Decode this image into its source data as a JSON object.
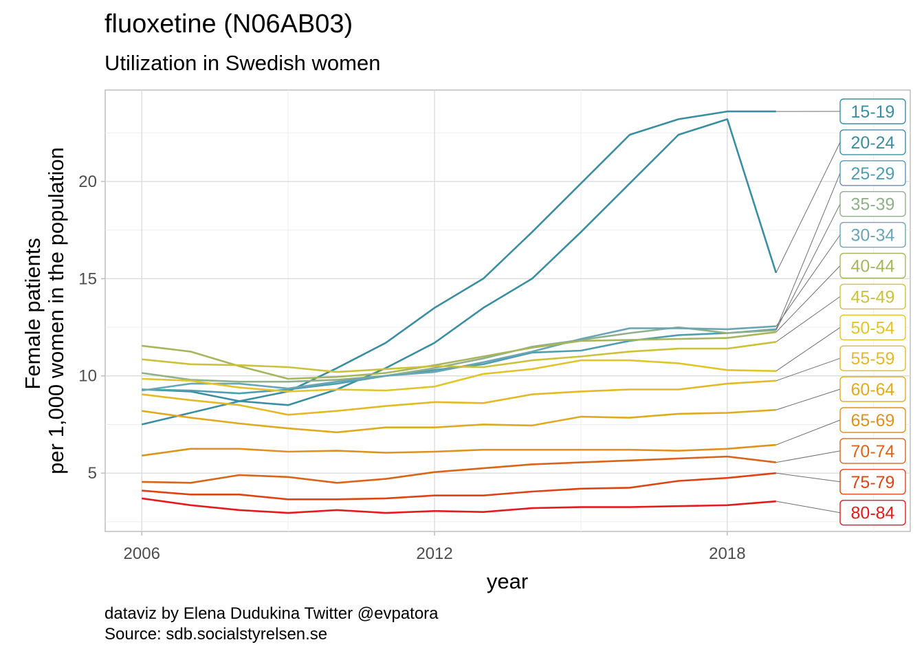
{
  "title": "fluoxetine (N06AB03)",
  "subtitle": "Utilization in Swedish women",
  "caption": [
    "dataviz by Elena Dudukina Twitter @evpatora",
    "Source: sdb.socialstyrelsen.se"
  ],
  "chart_data": {
    "type": "line",
    "title": "fluoxetine (N06AB03)",
    "subtitle": "Utilization in Swedish women",
    "xlabel": "year",
    "ylabel": "Female patients\nper 1,000 women in the population",
    "xlim": [
      2005.25,
      2021.75
    ],
    "ylim": [
      2.0,
      24.7
    ],
    "x_ticks": [
      2006,
      2012,
      2018
    ],
    "y_ticks": [
      5,
      10,
      15,
      20
    ],
    "grid": true,
    "legend": "direct labels at right end of each line",
    "x": [
      2006,
      2007,
      2008,
      2009,
      2010,
      2011,
      2012,
      2013,
      2014,
      2015,
      2016,
      2017,
      2018,
      2019
    ],
    "series": [
      {
        "name": "15-19",
        "color": "#3a8ea1",
        "values": [
          7.5,
          8.1,
          8.7,
          9.2,
          10.4,
          11.7,
          13.5,
          15.0,
          17.4,
          19.9,
          22.4,
          23.2,
          23.6,
          23.6
        ]
      },
      {
        "name": "20-24",
        "color": "#3a8ea1",
        "values": [
          9.3,
          9.2,
          8.7,
          8.5,
          9.3,
          10.4,
          11.7,
          13.5,
          15.0,
          17.4,
          19.9,
          22.4,
          23.2,
          15.3
        ]
      },
      {
        "name": "25-29",
        "color": "#4f9db0",
        "values": [
          9.3,
          9.25,
          9.1,
          9.3,
          9.6,
          10.0,
          10.3,
          10.6,
          11.2,
          11.3,
          11.8,
          12.1,
          12.2,
          12.4
        ]
      },
      {
        "name": "35-39",
        "color": "#8fb08a",
        "values": [
          10.15,
          9.8,
          9.7,
          9.7,
          9.8,
          10.0,
          10.4,
          10.9,
          11.5,
          11.85,
          12.2,
          12.5,
          12.2,
          12.35
        ]
      },
      {
        "name": "30-34",
        "color": "#6aa5b3",
        "values": [
          9.25,
          9.6,
          9.6,
          9.35,
          9.7,
          10.0,
          10.2,
          10.7,
          11.25,
          11.9,
          12.45,
          12.45,
          12.4,
          12.55
        ]
      },
      {
        "name": "40-44",
        "color": "#a8b55c",
        "values": [
          11.55,
          11.25,
          10.5,
          9.85,
          9.95,
          10.15,
          10.55,
          11.0,
          11.45,
          11.8,
          11.85,
          11.9,
          11.95,
          12.25
        ]
      },
      {
        "name": "45-49",
        "color": "#ccc13a",
        "values": [
          10.85,
          10.6,
          10.55,
          10.45,
          10.2,
          10.35,
          10.5,
          10.45,
          10.8,
          11.0,
          11.25,
          11.4,
          11.4,
          11.75
        ]
      },
      {
        "name": "50-54",
        "color": "#e0c52a",
        "values": [
          9.85,
          9.75,
          9.4,
          9.2,
          9.3,
          9.25,
          9.45,
          10.1,
          10.35,
          10.8,
          10.8,
          10.65,
          10.3,
          10.25
        ]
      },
      {
        "name": "55-59",
        "color": "#e3b925",
        "values": [
          9.05,
          8.75,
          8.5,
          8.0,
          8.2,
          8.45,
          8.65,
          8.6,
          9.05,
          9.2,
          9.3,
          9.3,
          9.6,
          9.75
        ]
      },
      {
        "name": "60-64",
        "color": "#dfaa1f",
        "values": [
          8.2,
          7.85,
          7.55,
          7.3,
          7.1,
          7.35,
          7.35,
          7.5,
          7.45,
          7.9,
          7.85,
          8.05,
          8.1,
          8.25
        ]
      },
      {
        "name": "65-69",
        "color": "#dc921c",
        "values": [
          5.9,
          6.25,
          6.25,
          6.1,
          6.15,
          6.05,
          6.1,
          6.2,
          6.2,
          6.2,
          6.2,
          6.15,
          6.25,
          6.45
        ]
      },
      {
        "name": "70-74",
        "color": "#d9651a",
        "values": [
          4.55,
          4.5,
          4.9,
          4.8,
          4.5,
          4.7,
          5.05,
          5.25,
          5.45,
          5.55,
          5.65,
          5.75,
          5.85,
          5.55
        ]
      },
      {
        "name": "75-79",
        "color": "#dc4513",
        "values": [
          4.1,
          3.9,
          3.9,
          3.65,
          3.65,
          3.7,
          3.85,
          3.85,
          4.05,
          4.2,
          4.25,
          4.6,
          4.75,
          5.0
        ]
      },
      {
        "name": "80-84",
        "color": "#e41a1c",
        "values": [
          3.7,
          3.35,
          3.1,
          2.95,
          3.1,
          2.95,
          3.05,
          3.0,
          3.2,
          3.25,
          3.25,
          3.3,
          3.35,
          3.55
        ]
      }
    ]
  }
}
